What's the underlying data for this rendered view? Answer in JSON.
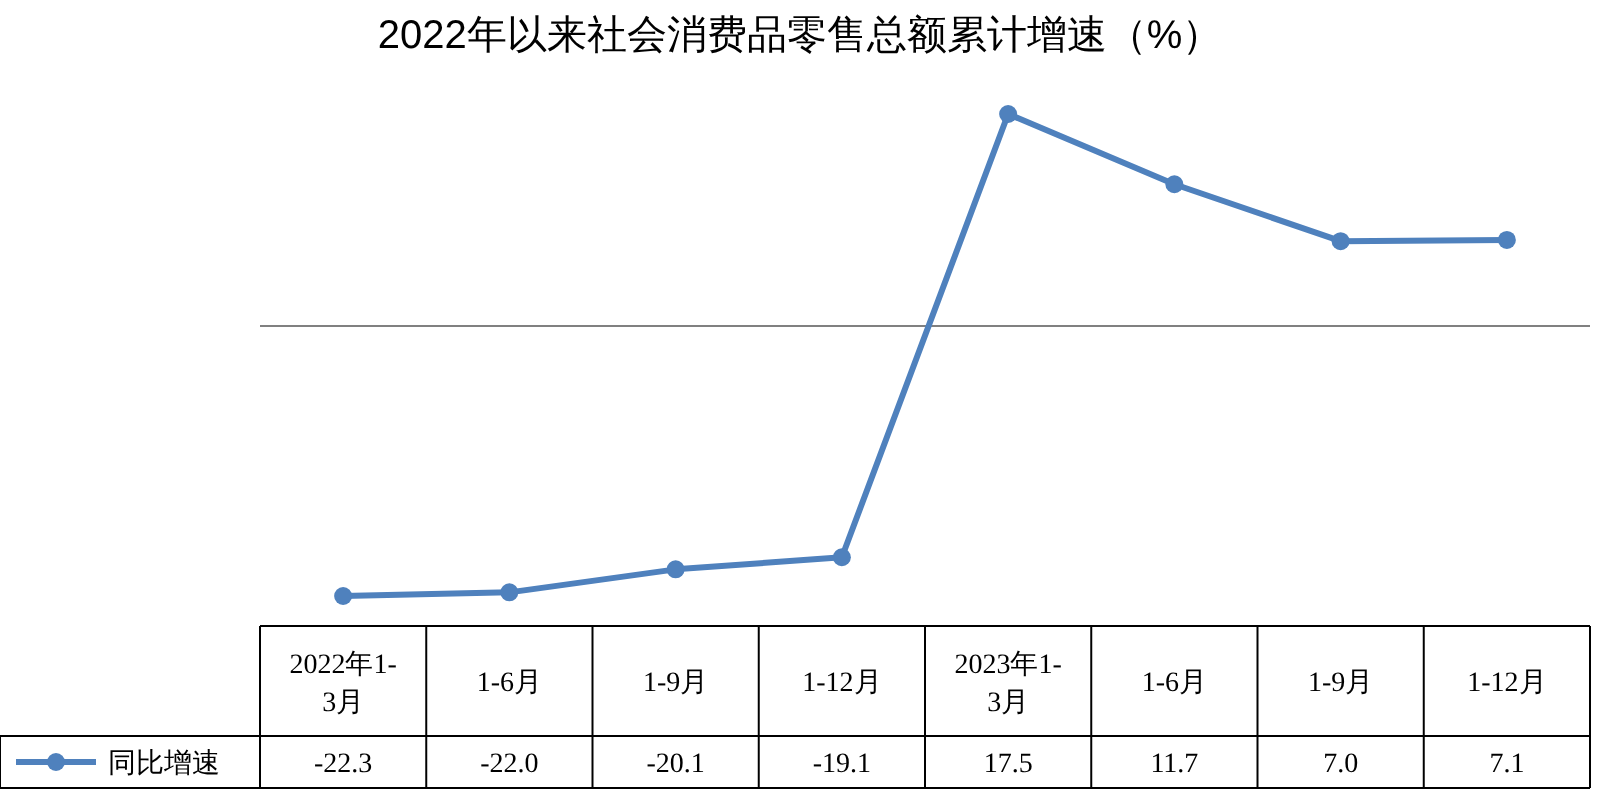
{
  "chart_data": {
    "type": "line",
    "title": "2022年以来社会消费品零售总额累计增速（%）",
    "categories": [
      "2022年1-3月",
      "1-6月",
      "1-9月",
      "1-12月",
      "2023年1-3月",
      "1-6月",
      "1-9月",
      "1-12月"
    ],
    "series": [
      {
        "name": "同比增速",
        "color": "#4f81bd",
        "values": [
          -22.3,
          -22.0,
          -20.1,
          -19.1,
          17.5,
          11.7,
          7.0,
          7.1
        ],
        "value_labels": [
          "-22.3",
          "-22.0",
          "-20.1",
          "-19.1",
          "17.5",
          "11.7",
          "7.0",
          "7.1"
        ]
      }
    ],
    "marker": "circle",
    "line_style": "solid",
    "legend": "bottom"
  }
}
